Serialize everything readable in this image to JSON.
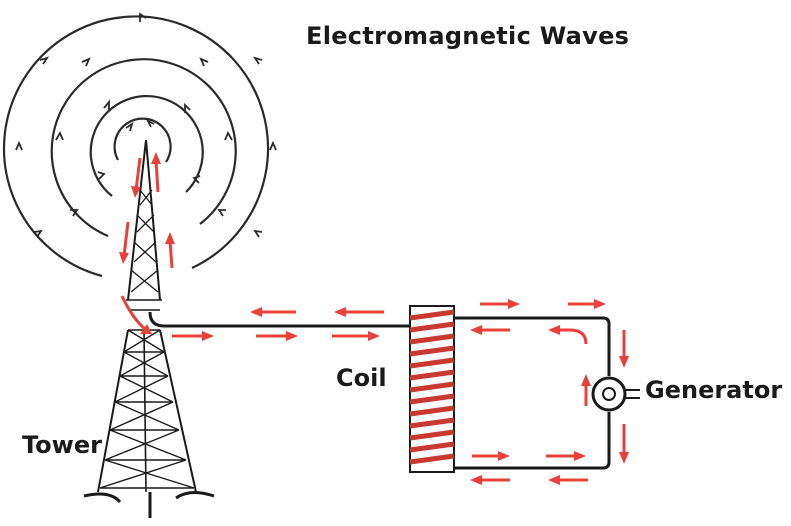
{
  "diagram": {
    "title": "Electromagnetic Waves",
    "labels": {
      "coil": "Coil",
      "generator": "Generator",
      "tower": "Tower"
    },
    "colors": {
      "wire": "#1a1a1a",
      "current_arrow": "#e8413a",
      "coil_winding": "#c83a30",
      "wave": "#2a2a2a"
    },
    "icons": [
      "wave-ring",
      "current-arrow",
      "antenna-tower",
      "coil",
      "generator-symbol"
    ]
  }
}
